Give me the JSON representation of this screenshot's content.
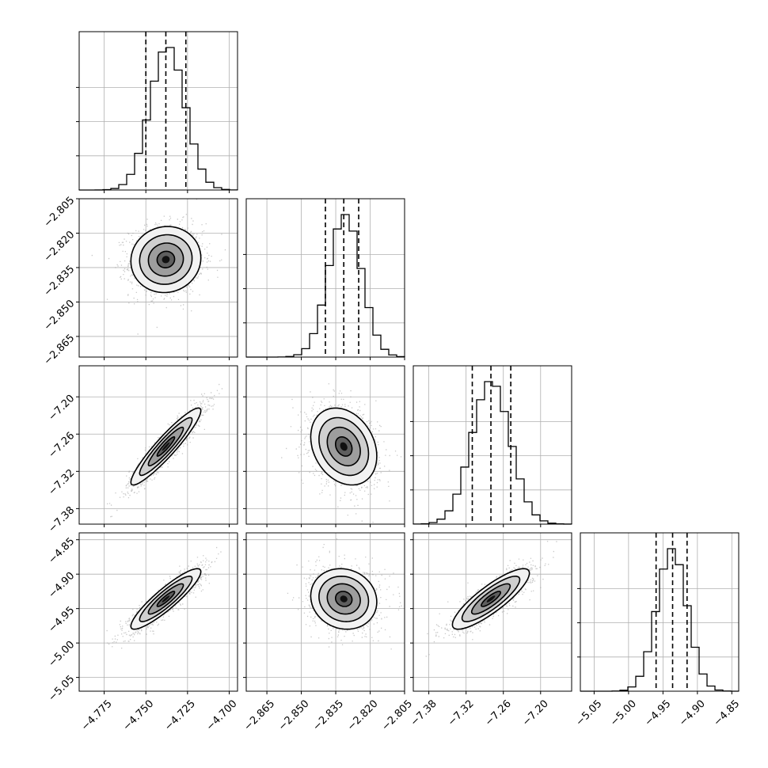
{
  "chart_data": {
    "type": "corner",
    "title": "",
    "grid": true,
    "params": [
      {
        "index": 0,
        "range": [
          -4.79,
          -4.695
        ],
        "ticks": [
          -4.775,
          -4.75,
          -4.725,
          -4.7
        ],
        "tick_labels": [
          "−4.775",
          "−4.750",
          "−4.725",
          "−4.700"
        ],
        "quantiles": [
          -4.75,
          -4.738,
          -4.726
        ],
        "hist_peak": -4.737,
        "hist_sigma": 0.0105,
        "label": ""
      },
      {
        "index": 1,
        "range": [
          -2.874,
          -2.805
        ],
        "ticks": [
          -2.865,
          -2.85,
          -2.835,
          -2.82,
          -2.805
        ],
        "tick_labels": [
          "−2.865",
          "−2.850",
          "−2.835",
          "−2.820",
          "−2.805"
        ],
        "quantiles": [
          -2.8395,
          -2.8315,
          -2.825
        ],
        "hist_peak": -2.831,
        "hist_sigma": 0.0072,
        "label": ""
      },
      {
        "index": 2,
        "range": [
          -7.405,
          -7.15
        ],
        "ticks": [
          -7.38,
          -7.32,
          -7.26,
          -7.2
        ],
        "tick_labels": [
          "−7.38",
          "−7.32",
          "−7.26",
          "−7.20"
        ],
        "quantiles": [
          -7.31,
          -7.28,
          -7.248
        ],
        "hist_peak": -7.28,
        "hist_sigma": 0.031,
        "label": ""
      },
      {
        "index": 3,
        "range": [
          -5.07,
          -4.84
        ],
        "ticks": [
          -5.05,
          -5.0,
          -4.95,
          -4.9,
          -4.85
        ],
        "tick_labels": [
          "−5.05",
          "−5.00",
          "−4.95",
          "−4.90",
          "−4.85"
        ],
        "quantiles": [
          -4.96,
          -4.936,
          -4.915
        ],
        "hist_peak": -4.937,
        "hist_sigma": 0.022,
        "label": ""
      }
    ],
    "correlations": {
      "1_0": 0.05,
      "2_0": 0.93,
      "2_1": -0.25,
      "3_0": 0.9,
      "3_1": -0.1,
      "3_2": 0.85
    },
    "contour_levels_sigma": [
      0.5,
      1.0,
      1.5,
      2.0
    ]
  }
}
